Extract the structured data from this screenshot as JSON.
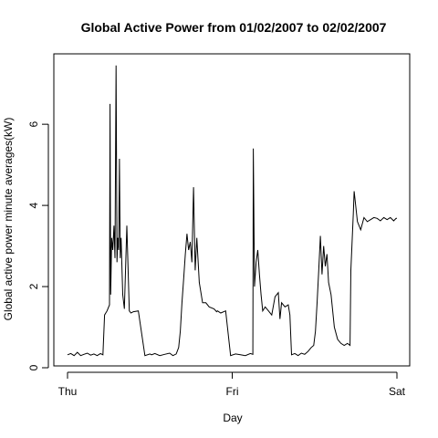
{
  "chart_data": {
    "type": "line",
    "title": "Global Active Power from 01/02/2007 to 02/02/2007",
    "xlabel": "Day",
    "ylabel": "Global active power minute averages(kW)",
    "x_unit": "days",
    "xlim": [
      0,
      2
    ],
    "ylim": [
      0,
      7.6
    ],
    "x_ticks": [
      {
        "value": 0,
        "label": "Thu"
      },
      {
        "value": 1,
        "label": "Fri"
      },
      {
        "value": 2,
        "label": "Sat"
      }
    ],
    "y_ticks": [
      {
        "value": 0,
        "label": "0"
      },
      {
        "value": 2,
        "label": "2"
      },
      {
        "value": 4,
        "label": "4"
      },
      {
        "value": 6,
        "label": "6"
      }
    ],
    "grid": false,
    "line_color": "#000000",
    "series": [
      {
        "x": [
          0.0,
          0.02,
          0.04,
          0.06,
          0.08,
          0.1,
          0.12,
          0.14,
          0.16,
          0.18,
          0.2,
          0.215,
          0.225,
          0.24,
          0.255,
          0.258,
          0.262,
          0.268,
          0.275,
          0.282,
          0.288,
          0.295,
          0.3,
          0.305,
          0.31,
          0.315,
          0.32,
          0.325,
          0.33,
          0.335,
          0.345,
          0.36,
          0.375,
          0.385,
          0.4,
          0.43,
          0.47,
          0.5,
          0.51,
          0.53,
          0.56,
          0.59,
          0.62,
          0.64,
          0.66,
          0.675,
          0.685,
          0.695,
          0.705,
          0.715,
          0.725,
          0.735,
          0.745,
          0.755,
          0.765,
          0.775,
          0.785,
          0.8,
          0.82,
          0.84,
          0.86,
          0.89,
          0.905,
          0.91,
          0.93,
          0.96,
          0.99,
          1.02,
          1.05,
          1.08,
          1.11,
          1.125,
          1.128,
          1.135,
          1.145,
          1.155,
          1.165,
          1.175,
          1.185,
          1.2,
          1.22,
          1.24,
          1.26,
          1.28,
          1.29,
          1.3,
          1.32,
          1.34,
          1.35,
          1.36,
          1.38,
          1.4,
          1.42,
          1.44,
          1.46,
          1.48,
          1.495,
          1.505,
          1.515,
          1.525,
          1.535,
          1.545,
          1.555,
          1.565,
          1.575,
          1.585,
          1.6,
          1.62,
          1.64,
          1.66,
          1.68,
          1.7,
          1.715,
          1.72,
          1.735,
          1.74,
          1.76,
          1.78,
          1.8,
          1.82,
          1.84,
          1.86,
          1.88,
          1.9,
          1.92,
          1.94,
          1.96,
          1.98,
          1.995,
          2.0
        ],
        "y": [
          0.32,
          0.35,
          0.3,
          0.38,
          0.3,
          0.33,
          0.36,
          0.31,
          0.34,
          0.3,
          0.35,
          0.32,
          1.3,
          1.4,
          1.55,
          6.5,
          1.8,
          3.2,
          2.9,
          3.5,
          2.7,
          7.45,
          2.6,
          3.2,
          2.9,
          5.15,
          2.7,
          3.2,
          2.5,
          1.8,
          1.45,
          3.5,
          1.4,
          1.35,
          1.38,
          1.4,
          0.3,
          0.34,
          0.32,
          0.35,
          0.3,
          0.33,
          0.36,
          0.3,
          0.34,
          0.5,
          0.9,
          1.6,
          2.2,
          2.8,
          3.3,
          2.9,
          3.1,
          2.6,
          4.45,
          2.4,
          3.2,
          2.1,
          1.6,
          1.6,
          1.5,
          1.45,
          1.38,
          1.4,
          1.35,
          1.4,
          0.3,
          0.34,
          0.32,
          0.3,
          0.35,
          0.33,
          5.4,
          2.0,
          2.6,
          2.9,
          2.3,
          1.8,
          1.4,
          1.5,
          1.4,
          1.3,
          1.75,
          1.85,
          1.2,
          1.6,
          1.5,
          1.55,
          1.3,
          0.32,
          0.35,
          0.3,
          0.36,
          0.33,
          0.4,
          0.5,
          0.55,
          0.9,
          1.6,
          2.4,
          3.25,
          2.3,
          3.0,
          2.5,
          2.8,
          2.1,
          1.8,
          1.0,
          0.7,
          0.6,
          0.55,
          0.6,
          0.55,
          2.4,
          3.8,
          4.35,
          3.6,
          3.4,
          3.7,
          3.6,
          3.65,
          3.7,
          3.68,
          3.62,
          3.7,
          3.65,
          3.7,
          3.62,
          3.68,
          3.68
        ]
      }
    ]
  }
}
